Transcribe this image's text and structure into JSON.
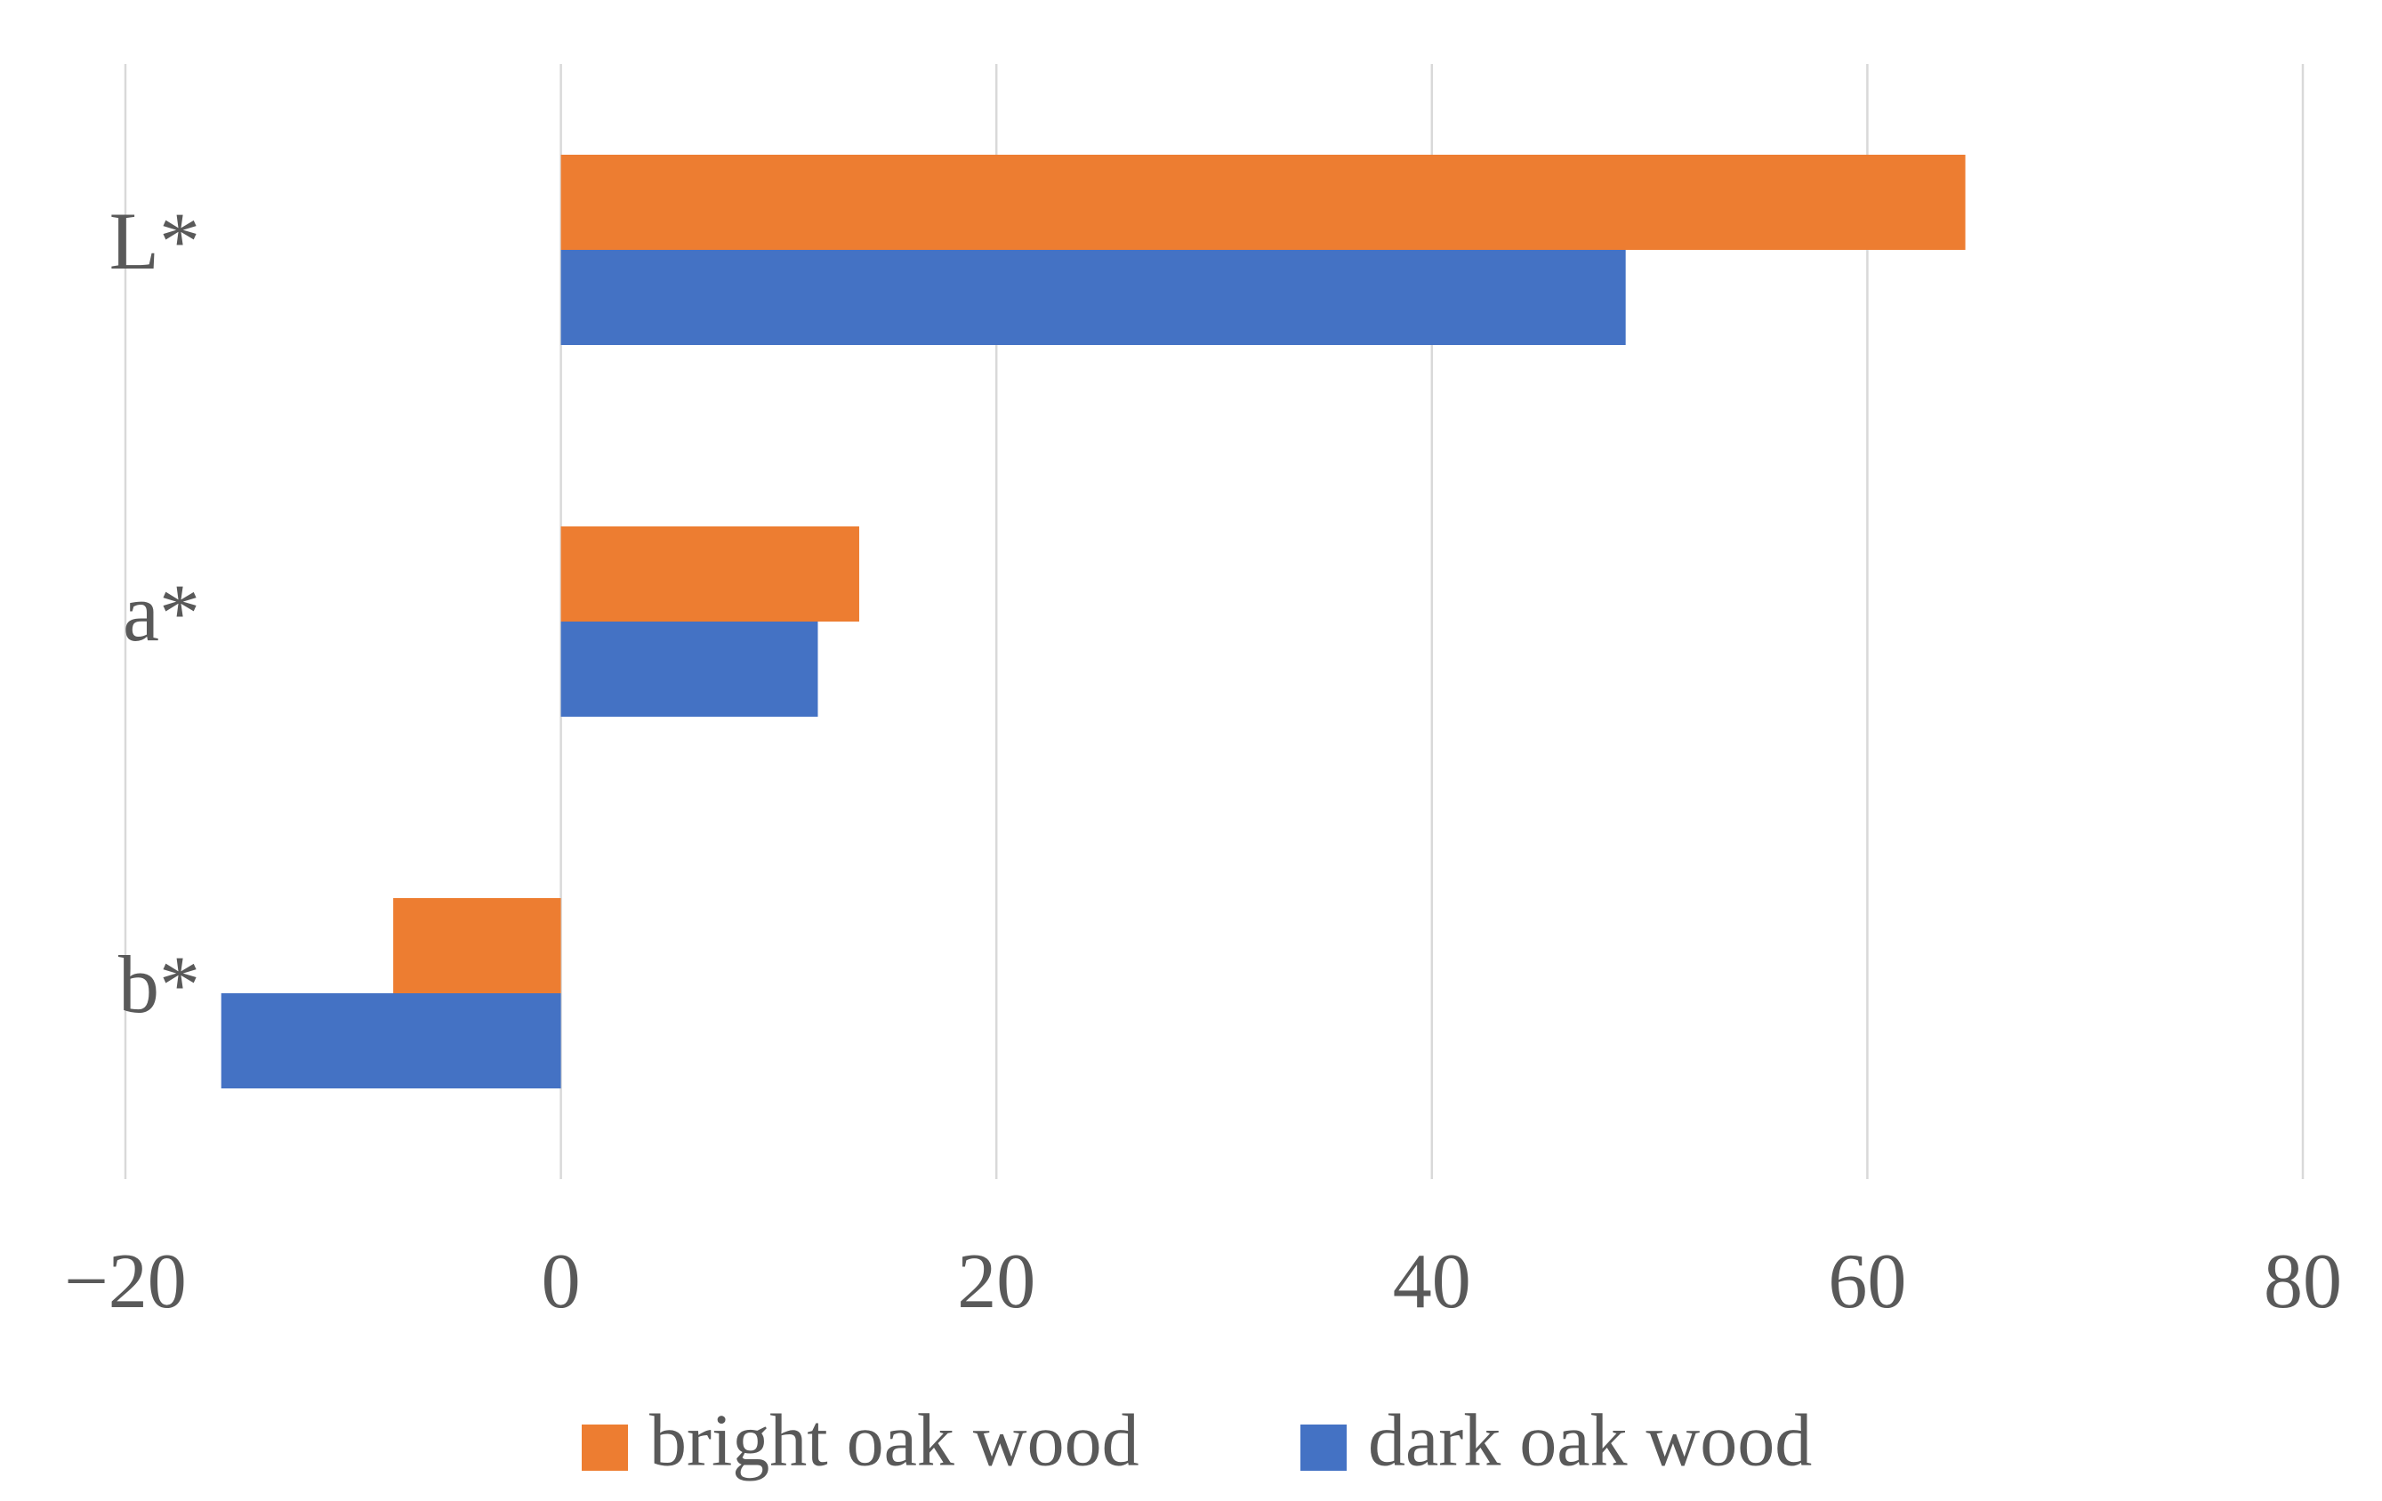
{
  "chart_data": {
    "type": "barh",
    "categories": [
      "L*",
      "a*",
      "b*"
    ],
    "series": [
      {
        "name": "bright oak wood",
        "color": "#ed7d31",
        "values": [
          64.5,
          13.7,
          -7.7
        ]
      },
      {
        "name": "dark oak wood",
        "color": "#4472c4",
        "values": [
          48.9,
          11.8,
          -15.6
        ]
      }
    ],
    "xlim": [
      -20,
      80
    ],
    "xticks": [
      {
        "value": -20,
        "label": "−20"
      },
      0,
      20,
      40,
      60,
      80
    ],
    "grid": true,
    "legend": "bottom"
  }
}
